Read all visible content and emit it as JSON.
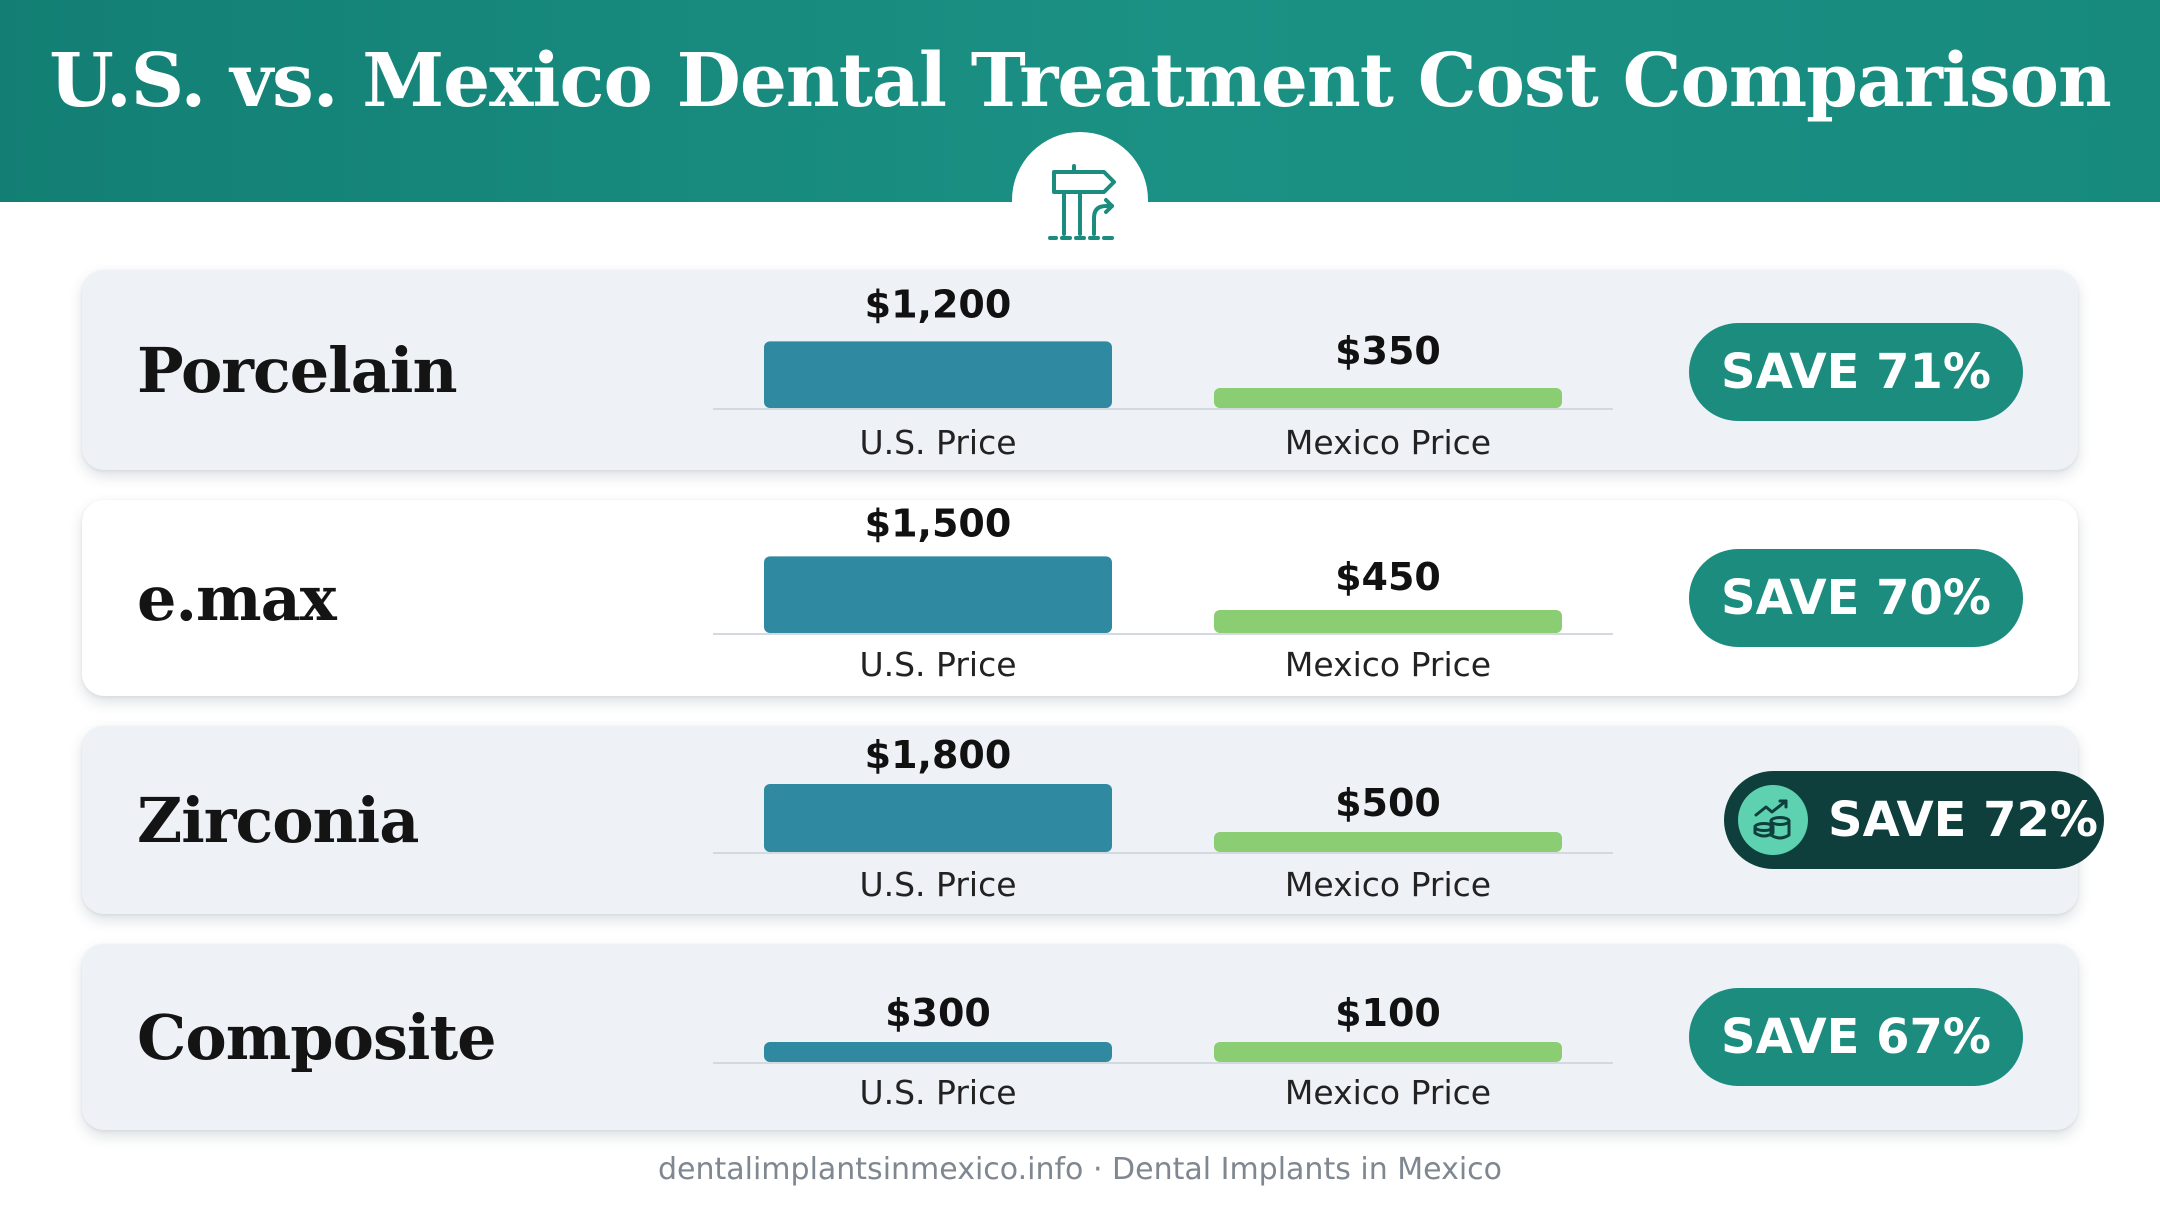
{
  "title": "U.S. vs. Mexico Dental Treatment Cost Comparison",
  "icon": "signpost-icon",
  "footer": "dentalimplantsinmexico.info · Dental Implants in Mexico",
  "colors": {
    "header": "#1b8c7e",
    "us_bar": "#2f8aa1",
    "mexico_bar": "#8acd73",
    "pill": "#1b8c7e",
    "pill_highlight": "#0e3f3c"
  },
  "chart_data": {
    "type": "bar",
    "categories": [
      "U.S. Price",
      "Mexico Price"
    ],
    "ylim": [
      0,
      1800
    ],
    "grid": false,
    "rows": [
      {
        "name": "Porcelain",
        "values": [
          1200,
          350
        ],
        "value_labels": [
          "$1,200",
          "$350"
        ],
        "savings": "SAVE 71%",
        "highlight": false
      },
      {
        "name": "e.max",
        "values": [
          1500,
          450
        ],
        "value_labels": [
          "$1,500",
          "$450"
        ],
        "savings": "SAVE 70%",
        "highlight": false
      },
      {
        "name": "Zirconia",
        "values": [
          1800,
          500
        ],
        "value_labels": [
          "$1,800",
          "$500"
        ],
        "savings": "SAVE 72%",
        "highlight": true,
        "highlight_icon": "coins-growth-icon"
      },
      {
        "name": "Composite",
        "values": [
          300,
          100
        ],
        "value_labels": [
          "$300",
          "$100"
        ],
        "savings": "SAVE 67%",
        "highlight": false
      }
    ]
  }
}
